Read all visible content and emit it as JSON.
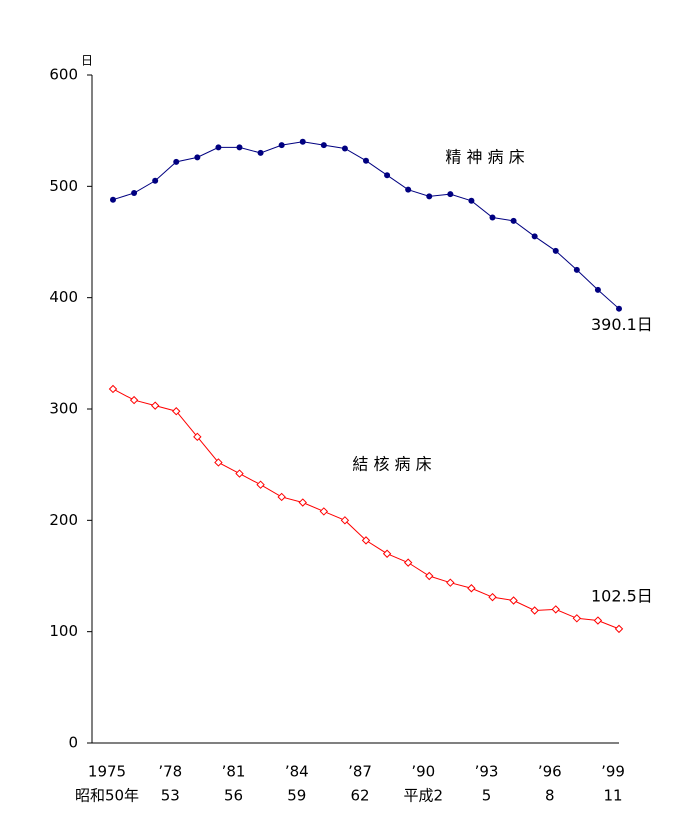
{
  "chart_data": {
    "type": "line",
    "y_unit": "日",
    "categories": [
      "1975",
      null,
      null,
      "’78",
      null,
      null,
      "’81",
      null,
      null,
      "’84",
      null,
      null,
      "’87",
      null,
      null,
      "’90",
      null,
      null,
      "’93",
      null,
      null,
      "’96",
      null,
      null,
      "’99"
    ],
    "era_labels": [
      "昭和50年",
      null,
      null,
      "53",
      null,
      null,
      "56",
      null,
      null,
      "59",
      null,
      null,
      "62",
      null,
      null,
      "平成2",
      null,
      null,
      "5",
      null,
      null,
      "8",
      null,
      null,
      "11"
    ],
    "series": [
      {
        "name": "精 神 病 床",
        "color": "#000080",
        "marker": "circle",
        "values": [
          488,
          494,
          505,
          522,
          526,
          535,
          535,
          530,
          537,
          540,
          537,
          534,
          523,
          510,
          497,
          491,
          493,
          487,
          472,
          469,
          455,
          442,
          425,
          407,
          390.1
        ],
        "value_labels": [
          null,
          null,
          null,
          null,
          null,
          null,
          null,
          null,
          null,
          null,
          null,
          null,
          null,
          null,
          null,
          null,
          null,
          null,
          null,
          null,
          null,
          null,
          null,
          null,
          "390.1日"
        ]
      },
      {
        "name": "結 核 病 床",
        "color": "#ff0000",
        "marker": "diamond",
        "values": [
          318,
          308,
          303,
          298,
          275,
          252,
          242,
          232,
          221,
          216,
          208,
          200,
          182,
          170,
          162,
          150,
          144,
          139,
          131,
          128,
          119,
          120,
          112,
          110,
          102.5
        ],
        "value_labels": [
          null,
          null,
          null,
          null,
          null,
          null,
          null,
          null,
          null,
          null,
          null,
          null,
          null,
          null,
          null,
          null,
          null,
          null,
          null,
          null,
          null,
          null,
          null,
          null,
          "102.5日"
        ]
      }
    ],
    "ylim": [
      0,
      600
    ],
    "yticks": [
      0,
      100,
      200,
      300,
      400,
      500,
      600
    ],
    "grid": false
  }
}
